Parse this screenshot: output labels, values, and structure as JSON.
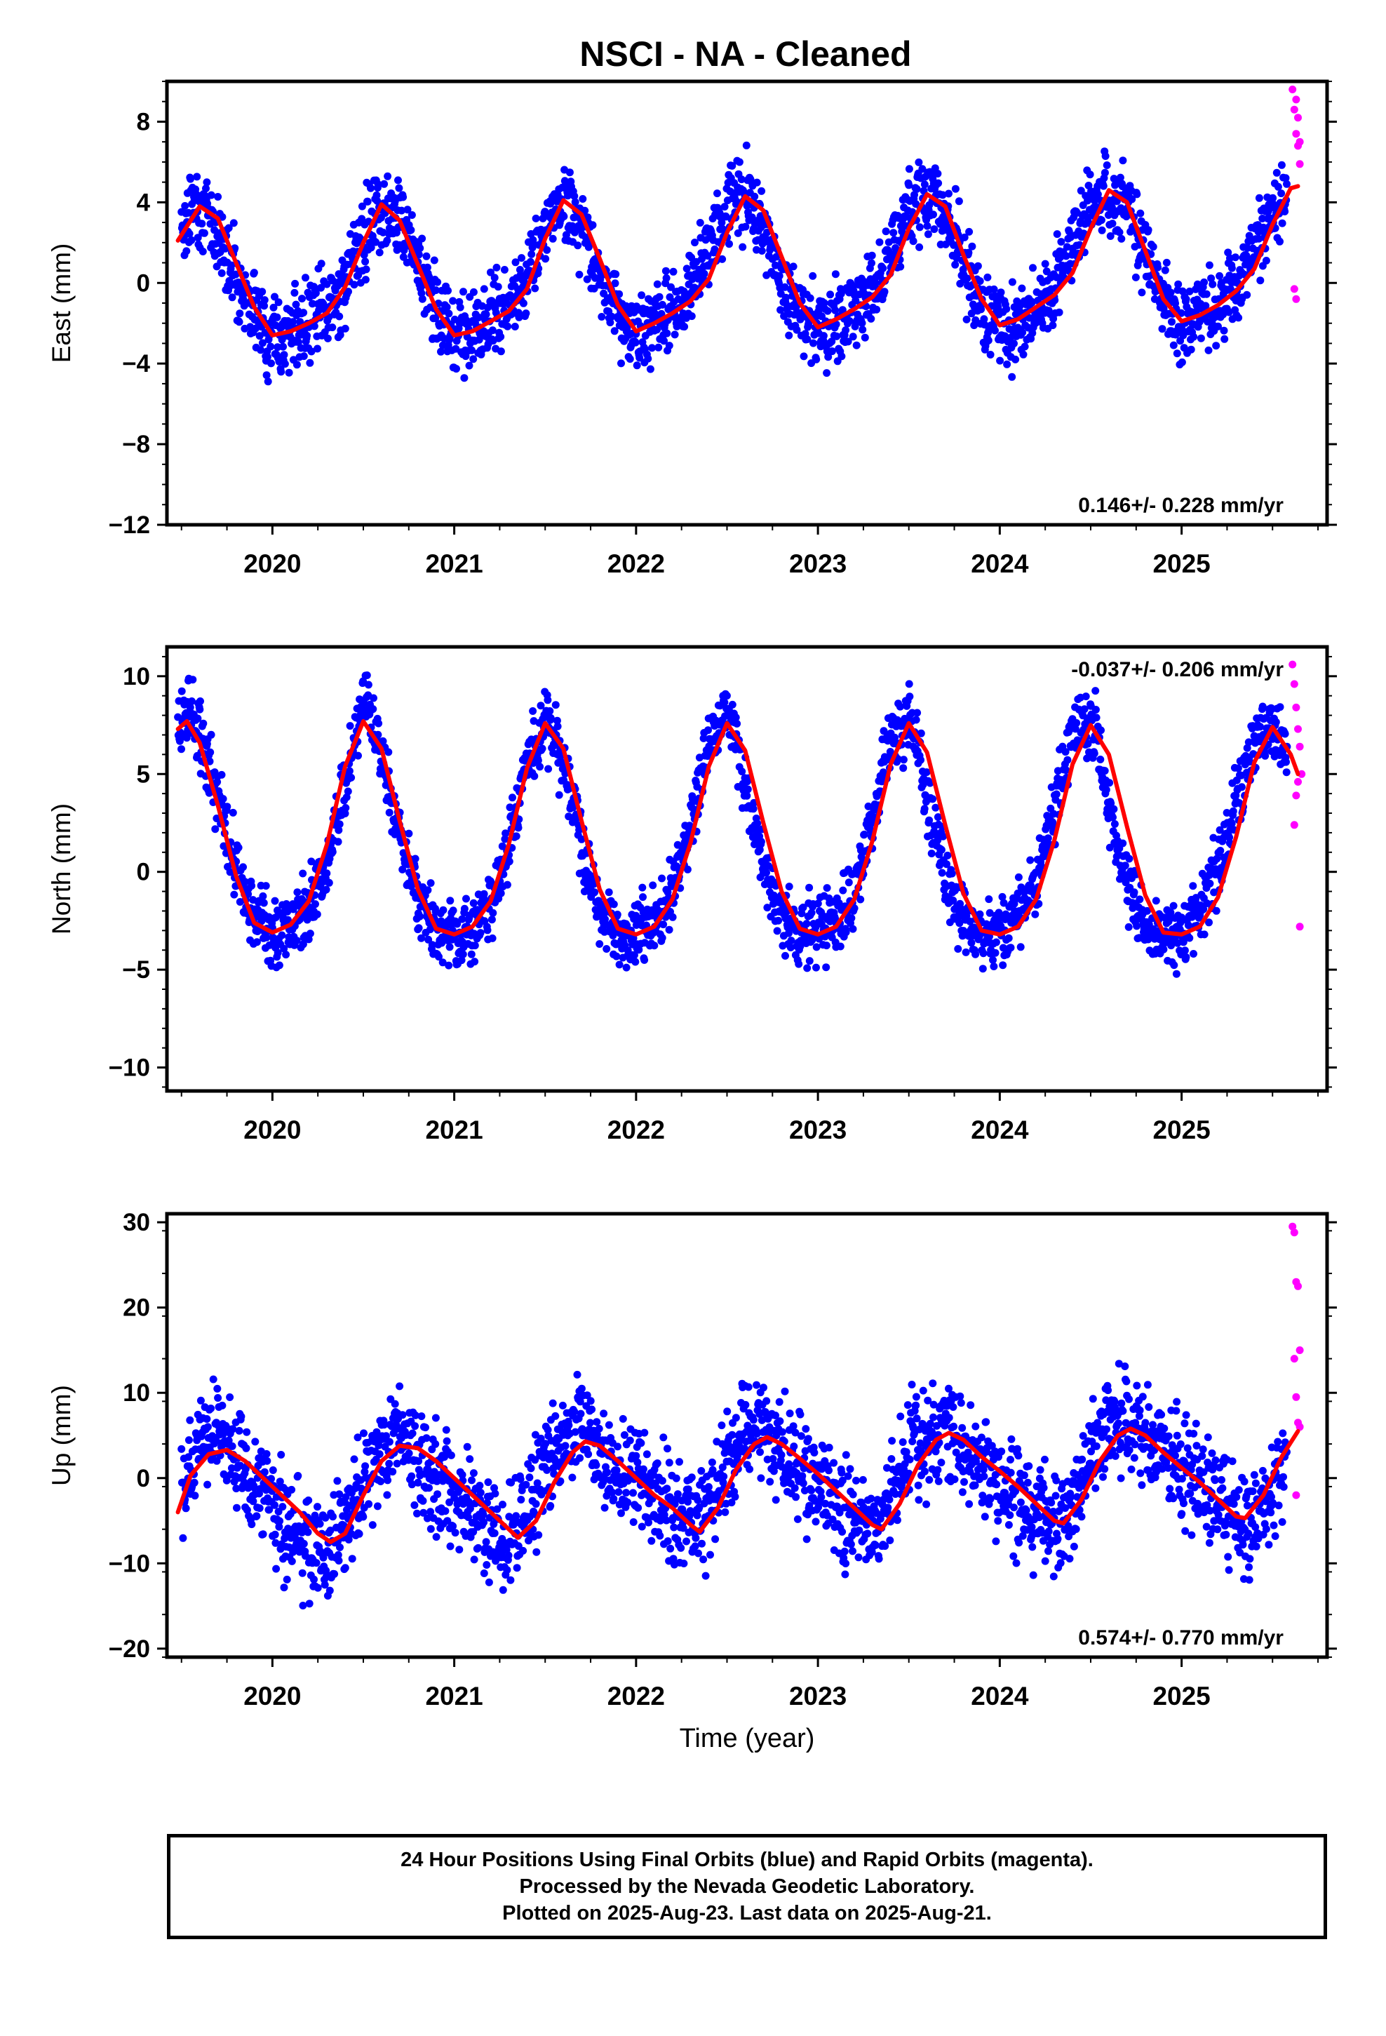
{
  "figure": {
    "title": "NSCI  - NA - Cleaned",
    "footer_lines": [
      "24 Hour Positions Using Final Orbits (blue) and Rapid Orbits (magenta).",
      "Processed by the Nevada Geodetic Laboratory.",
      "Plotted on 2025-Aug-23. Last data on 2025-Aug-21."
    ],
    "colors": {
      "final_orbits": "#0000ff",
      "rapid_orbits": "#ff00ff",
      "model_fit": "#ff0000",
      "axes": "#000000"
    }
  },
  "chart_data": [
    {
      "type": "scatter",
      "name": "east",
      "ylabel": "East (mm)",
      "xlabel": "",
      "xlim": [
        2019.42,
        2025.8
      ],
      "ylim": [
        -12,
        10
      ],
      "xticks": [
        "2020",
        "2021",
        "2022",
        "2023",
        "2024",
        "2025"
      ],
      "yticks": [
        "8",
        "4",
        "0",
        "−4",
        "−8",
        "−12"
      ],
      "ytick_values": [
        8,
        4,
        0,
        -4,
        -8,
        -12
      ],
      "rate": "0.146+/- 0.228 mm/yr",
      "rate_position": "bottom-right",
      "grid": false,
      "series": [
        {
          "name": "Final Orbits (blue)",
          "kind": "points",
          "sampled": true,
          "x": [
            2019.5,
            2019.58,
            2019.65,
            2019.75,
            2019.85,
            2019.95,
            2020.05,
            2020.15,
            2020.25,
            2020.35,
            2020.45,
            2020.55,
            2020.62,
            2020.7,
            2020.8,
            2020.9,
            2021.0,
            2021.1,
            2021.2,
            2021.3,
            2021.4,
            2021.5,
            2021.6,
            2021.65,
            2021.75,
            2021.85,
            2021.95,
            2022.05,
            2022.15,
            2022.25,
            2022.35,
            2022.45,
            2022.55,
            2022.62,
            2022.7,
            2022.8,
            2022.9,
            2023.0,
            2023.1,
            2023.2,
            2023.3,
            2023.4,
            2023.5,
            2023.6,
            2023.7,
            2023.8,
            2023.9,
            2024.0,
            2024.1,
            2024.2,
            2024.3,
            2024.4,
            2024.5,
            2024.6,
            2024.7,
            2024.8,
            2024.9,
            2025.0,
            2025.1,
            2025.2,
            2025.3,
            2025.4,
            2025.5,
            2025.58
          ],
          "y": [
            2.8,
            3.9,
            3.4,
            1.5,
            -0.6,
            -2.3,
            -2.6,
            -2.2,
            -1.8,
            -0.8,
            1.2,
            3.3,
            4.0,
            3.3,
            1.0,
            -1.4,
            -2.4,
            -2.5,
            -2.0,
            -1.3,
            0.3,
            2.9,
            4.1,
            3.8,
            1.8,
            -0.7,
            -2.2,
            -2.3,
            -1.8,
            -1.0,
            0.5,
            2.9,
            4.3,
            4.2,
            2.6,
            0.2,
            -1.6,
            -2.2,
            -1.9,
            -1.3,
            -0.4,
            1.6,
            3.8,
            4.3,
            3.6,
            1.1,
            -1.4,
            -2.1,
            -1.9,
            -1.2,
            -0.2,
            1.9,
            4.0,
            4.5,
            3.9,
            1.6,
            -0.9,
            -1.9,
            -1.6,
            -1.1,
            -0.3,
            1.4,
            3.4,
            4.5
          ]
        },
        {
          "name": "Rapid Orbits (magenta)",
          "kind": "points",
          "x": [
            2025.61,
            2025.62,
            2025.63,
            2025.64,
            2025.65,
            2025.62,
            2025.63,
            2025.64,
            2025.65,
            2025.63
          ],
          "y": [
            9.6,
            8.6,
            7.4,
            6.8,
            5.9,
            -0.3,
            -0.8,
            8.2,
            7.0,
            9.1
          ]
        },
        {
          "name": "Model fit (red)",
          "kind": "line",
          "sampled": true,
          "x": [
            2019.48,
            2019.6,
            2019.7,
            2019.8,
            2019.9,
            2020.0,
            2020.1,
            2020.2,
            2020.3,
            2020.4,
            2020.5,
            2020.6,
            2020.7,
            2020.8,
            2020.9,
            2021.0,
            2021.1,
            2021.2,
            2021.3,
            2021.4,
            2021.5,
            2021.6,
            2021.7,
            2021.8,
            2021.9,
            2022.0,
            2022.1,
            2022.2,
            2022.3,
            2022.4,
            2022.5,
            2022.6,
            2022.7,
            2022.8,
            2022.9,
            2023.0,
            2023.1,
            2023.2,
            2023.3,
            2023.4,
            2023.5,
            2023.6,
            2023.7,
            2023.8,
            2023.9,
            2024.0,
            2024.1,
            2024.2,
            2024.3,
            2024.4,
            2024.5,
            2024.6,
            2024.7,
            2024.8,
            2024.9,
            2025.0,
            2025.1,
            2025.2,
            2025.3,
            2025.4,
            2025.5,
            2025.6,
            2025.64
          ],
          "y": [
            2.1,
            3.8,
            3.2,
            1.0,
            -1.2,
            -2.6,
            -2.4,
            -2.0,
            -1.5,
            -0.2,
            2.0,
            3.9,
            3.1,
            0.9,
            -1.3,
            -2.6,
            -2.4,
            -1.9,
            -1.4,
            -0.3,
            2.2,
            4.1,
            3.4,
            1.2,
            -1.1,
            -2.4,
            -2.0,
            -1.5,
            -0.9,
            0.2,
            2.5,
            4.3,
            3.6,
            1.3,
            -1.0,
            -2.2,
            -1.8,
            -1.3,
            -0.7,
            0.4,
            2.7,
            4.4,
            3.8,
            1.4,
            -0.8,
            -2.1,
            -1.8,
            -1.2,
            -0.6,
            0.5,
            2.7,
            4.6,
            4.0,
            1.6,
            -0.8,
            -1.9,
            -1.6,
            -1.1,
            -0.4,
            0.7,
            2.9,
            4.7,
            4.8
          ]
        }
      ]
    },
    {
      "type": "scatter",
      "name": "north",
      "ylabel": "North (mm)",
      "xlabel": "",
      "xlim": [
        2019.42,
        2025.8
      ],
      "ylim": [
        -11.2,
        11.5
      ],
      "xticks": [
        "2020",
        "2021",
        "2022",
        "2023",
        "2024",
        "2025"
      ],
      "yticks": [
        "10",
        "5",
        "0",
        "−5",
        "−10"
      ],
      "ytick_values": [
        10,
        5,
        0,
        -5,
        -10
      ],
      "rate": "-0.037+/- 0.206 mm/yr",
      "rate_position": "top-right",
      "grid": false,
      "series": [
        {
          "name": "Final Orbits (blue)",
          "kind": "points",
          "sampled": true,
          "x": [
            2019.48,
            2019.55,
            2019.6,
            2019.7,
            2019.8,
            2019.9,
            2020.0,
            2020.1,
            2020.2,
            2020.3,
            2020.4,
            2020.48,
            2020.52,
            2020.6,
            2020.7,
            2020.8,
            2020.9,
            2021.0,
            2021.1,
            2021.2,
            2021.3,
            2021.4,
            2021.5,
            2021.55,
            2021.6,
            2021.7,
            2021.8,
            2021.9,
            2022.0,
            2022.1,
            2022.2,
            2022.3,
            2022.4,
            2022.5,
            2022.55,
            2022.6,
            2022.7,
            2022.8,
            2022.9,
            2023.0,
            2023.1,
            2023.2,
            2023.3,
            2023.4,
            2023.5,
            2023.55,
            2023.6,
            2023.7,
            2023.8,
            2023.9,
            2024.0,
            2024.1,
            2024.2,
            2024.3,
            2024.4,
            2024.5,
            2024.55,
            2024.6,
            2024.7,
            2024.8,
            2024.9,
            2025.0,
            2025.1,
            2025.2,
            2025.3,
            2025.4,
            2025.5,
            2025.58
          ],
          "y": [
            7.6,
            8.4,
            7.2,
            4.0,
            0.3,
            -2.4,
            -3.2,
            -2.7,
            -1.9,
            0.5,
            4.6,
            7.9,
            8.6,
            6.0,
            1.6,
            -1.6,
            -3.0,
            -3.2,
            -2.9,
            -1.6,
            1.4,
            5.6,
            7.8,
            7.3,
            5.2,
            1.1,
            -1.9,
            -3.1,
            -3.1,
            -2.6,
            -1.0,
            2.5,
            6.4,
            8.0,
            7.0,
            4.4,
            0.4,
            -2.2,
            -3.0,
            -3.1,
            -2.5,
            -1.0,
            2.8,
            6.8,
            7.8,
            6.9,
            3.5,
            -0.2,
            -2.6,
            -3.3,
            -3.0,
            -2.4,
            -0.6,
            3.2,
            7.0,
            7.6,
            6.4,
            3.1,
            -0.6,
            -2.8,
            -3.2,
            -3.0,
            -2.1,
            0.0,
            3.8,
            6.6,
            7.4,
            5.6
          ]
        },
        {
          "name": "Rapid Orbits (magenta)",
          "kind": "points",
          "x": [
            2025.61,
            2025.62,
            2025.63,
            2025.64,
            2025.65,
            2025.62,
            2025.63,
            2025.64,
            2025.65,
            2025.66
          ],
          "y": [
            10.6,
            9.6,
            8.4,
            7.3,
            6.4,
            2.4,
            3.9,
            4.6,
            -2.8,
            5.0
          ]
        },
        {
          "name": "Model fit (red)",
          "kind": "line",
          "sampled": true,
          "x": [
            2019.48,
            2019.53,
            2019.6,
            2019.7,
            2019.8,
            2019.9,
            2020.0,
            2020.1,
            2020.2,
            2020.3,
            2020.4,
            2020.5,
            2020.6,
            2020.7,
            2020.8,
            2020.9,
            2021.0,
            2021.1,
            2021.2,
            2021.3,
            2021.4,
            2021.5,
            2021.6,
            2021.7,
            2021.8,
            2021.9,
            2022.0,
            2022.1,
            2022.2,
            2022.3,
            2022.4,
            2022.5,
            2022.6,
            2022.7,
            2022.8,
            2022.9,
            2023.0,
            2023.1,
            2023.2,
            2023.3,
            2023.4,
            2023.5,
            2023.6,
            2023.7,
            2023.8,
            2023.9,
            2024.0,
            2024.1,
            2024.2,
            2024.3,
            2024.4,
            2024.5,
            2024.6,
            2024.7,
            2024.8,
            2024.9,
            2025.0,
            2025.1,
            2025.2,
            2025.3,
            2025.4,
            2025.5,
            2025.6,
            2025.64
          ],
          "y": [
            7.3,
            7.7,
            6.6,
            3.4,
            -0.2,
            -2.6,
            -3.1,
            -2.7,
            -1.5,
            1.4,
            5.4,
            7.7,
            6.3,
            2.6,
            -0.9,
            -2.9,
            -3.2,
            -2.8,
            -1.5,
            1.4,
            5.3,
            7.6,
            6.3,
            2.6,
            -0.9,
            -2.9,
            -3.2,
            -2.8,
            -1.4,
            1.5,
            5.4,
            7.6,
            6.2,
            2.5,
            -1.0,
            -2.9,
            -3.2,
            -2.8,
            -1.4,
            1.6,
            5.5,
            7.6,
            6.1,
            2.4,
            -1.1,
            -3.0,
            -3.2,
            -2.8,
            -1.4,
            1.6,
            5.5,
            7.5,
            6.0,
            2.3,
            -1.2,
            -3.1,
            -3.2,
            -2.8,
            -1.3,
            1.8,
            5.6,
            7.4,
            6.0,
            5.0
          ]
        }
      ]
    },
    {
      "type": "scatter",
      "name": "up",
      "ylabel": "Up (mm)",
      "xlabel": "Time (year)",
      "xlim": [
        2019.42,
        2025.8
      ],
      "ylim": [
        -21,
        31
      ],
      "xticks": [
        "2020",
        "2021",
        "2022",
        "2023",
        "2024",
        "2025"
      ],
      "yticks": [
        "30",
        "20",
        "10",
        "0",
        "−10",
        "−20"
      ],
      "ytick_values": [
        30,
        20,
        10,
        0,
        -10,
        -20
      ],
      "rate": "0.574+/- 0.770 mm/yr",
      "rate_position": "bottom-right",
      "grid": false,
      "series": [
        {
          "name": "Final Orbits (blue)",
          "kind": "points",
          "sampled": true,
          "x": [
            2019.5,
            2019.6,
            2019.7,
            2019.8,
            2019.9,
            2020.0,
            2020.1,
            2020.2,
            2020.3,
            2020.4,
            2020.5,
            2020.6,
            2020.7,
            2020.8,
            2020.9,
            2021.0,
            2021.1,
            2021.2,
            2021.3,
            2021.4,
            2021.5,
            2021.6,
            2021.7,
            2021.8,
            2021.9,
            2022.0,
            2022.1,
            2022.2,
            2022.3,
            2022.4,
            2022.5,
            2022.6,
            2022.7,
            2022.8,
            2022.9,
            2023.0,
            2023.1,
            2023.2,
            2023.3,
            2023.4,
            2023.5,
            2023.6,
            2023.7,
            2023.8,
            2023.9,
            2024.0,
            2024.1,
            2024.2,
            2024.3,
            2024.4,
            2024.5,
            2024.6,
            2024.7,
            2024.8,
            2024.9,
            2025.0,
            2025.1,
            2025.2,
            2025.3,
            2025.4,
            2025.5,
            2025.58
          ],
          "y": [
            -2.5,
            4.0,
            5.5,
            1.5,
            -1.0,
            -4.0,
            -5.5,
            -8.0,
            -9.0,
            -6.0,
            -1.0,
            3.5,
            5.5,
            2.0,
            -0.5,
            -1.5,
            -4.0,
            -6.5,
            -7.5,
            -4.0,
            1.0,
            4.0,
            6.5,
            2.5,
            0.5,
            0.0,
            -2.0,
            -4.5,
            -6.0,
            -3.0,
            2.0,
            5.5,
            6.5,
            3.5,
            1.5,
            -1.5,
            -3.0,
            -5.5,
            -7.0,
            -3.5,
            2.5,
            5.5,
            6.0,
            3.0,
            1.0,
            -1.0,
            -2.5,
            -4.5,
            -6.0,
            -3.0,
            2.5,
            6.0,
            7.0,
            5.0,
            3.5,
            1.0,
            -1.0,
            -3.0,
            -5.0,
            -6.5,
            -2.0,
            2.5
          ]
        },
        {
          "name": "Rapid Orbits (magenta)",
          "kind": "points",
          "x": [
            2025.61,
            2025.62,
            2025.63,
            2025.64,
            2025.65,
            2025.62,
            2025.63,
            2025.64,
            2025.65,
            2025.63
          ],
          "y": [
            29.5,
            28.8,
            23.0,
            22.5,
            15.0,
            14.0,
            9.5,
            6.5,
            6.0,
            -2.0
          ]
        },
        {
          "name": "Model fit (red)",
          "kind": "line",
          "sampled": true,
          "x": [
            2019.48,
            2019.55,
            2019.65,
            2019.75,
            2019.85,
            2019.95,
            2020.05,
            2020.15,
            2020.25,
            2020.32,
            2020.4,
            2020.5,
            2020.6,
            2020.7,
            2020.8,
            2020.9,
            2021.0,
            2021.1,
            2021.2,
            2021.3,
            2021.35,
            2021.45,
            2021.55,
            2021.65,
            2021.72,
            2021.8,
            2021.9,
            2022.0,
            2022.1,
            2022.2,
            2022.3,
            2022.35,
            2022.45,
            2022.55,
            2022.65,
            2022.72,
            2022.8,
            2022.9,
            2023.0,
            2023.1,
            2023.2,
            2023.3,
            2023.35,
            2023.45,
            2023.55,
            2023.65,
            2023.72,
            2023.8,
            2023.9,
            2024.0,
            2024.1,
            2024.2,
            2024.3,
            2024.35,
            2024.45,
            2024.55,
            2024.65,
            2024.72,
            2024.8,
            2024.9,
            2025.0,
            2025.1,
            2025.2,
            2025.3,
            2025.35,
            2025.45,
            2025.55,
            2025.64
          ],
          "y": [
            -4.0,
            0.3,
            2.8,
            3.3,
            2.0,
            0.0,
            -2.0,
            -4.0,
            -6.5,
            -7.5,
            -6.5,
            -2.0,
            2.0,
            3.8,
            3.5,
            2.0,
            0.0,
            -2.0,
            -4.0,
            -6.0,
            -7.0,
            -5.0,
            -0.5,
            3.0,
            4.3,
            3.8,
            2.0,
            0.0,
            -2.0,
            -3.5,
            -5.5,
            -6.3,
            -3.5,
            1.0,
            4.0,
            4.8,
            4.0,
            2.3,
            0.5,
            -1.5,
            -3.5,
            -5.5,
            -6.0,
            -3.0,
            1.5,
            4.5,
            5.3,
            4.5,
            2.5,
            0.8,
            -1.0,
            -3.0,
            -5.0,
            -5.3,
            -2.5,
            2.0,
            5.0,
            5.8,
            5.0,
            3.0,
            1.2,
            -0.5,
            -2.5,
            -4.5,
            -4.7,
            -2.0,
            2.5,
            5.5
          ]
        }
      ]
    }
  ]
}
